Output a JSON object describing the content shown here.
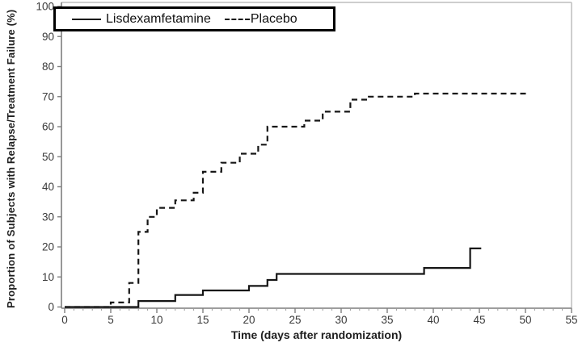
{
  "chart_data": {
    "type": "line",
    "subtype": "kaplan-meier-step",
    "title": "",
    "xlabel": "Time (days after randomization)",
    "ylabel": "Proportion of Subjects with Relapse/Treatment Failure (%)",
    "xlim": [
      0,
      55
    ],
    "ylim": [
      0,
      100
    ],
    "x_ticks": [
      0,
      5,
      10,
      15,
      20,
      25,
      30,
      35,
      40,
      45,
      50,
      55
    ],
    "x_minor_tick_interval": 1,
    "y_ticks": [
      0,
      10,
      20,
      30,
      40,
      50,
      60,
      70,
      80,
      90,
      100
    ],
    "grid": false,
    "legend_position": "top-left-box",
    "series": [
      {
        "name": "Lisdexamfetamine",
        "line_style": "solid",
        "color": "#161616",
        "points": [
          [
            0,
            0
          ],
          [
            8,
            2
          ],
          [
            12,
            4
          ],
          [
            15,
            5.5
          ],
          [
            20,
            7
          ],
          [
            22,
            9
          ],
          [
            23,
            11
          ],
          [
            39,
            13
          ],
          [
            44,
            19.5
          ]
        ],
        "x_end": 45.2
      },
      {
        "name": "Placebo",
        "line_style": "dashed",
        "color": "#161616",
        "points": [
          [
            0,
            0
          ],
          [
            5,
            1.5
          ],
          [
            7,
            8
          ],
          [
            8,
            25
          ],
          [
            9,
            30
          ],
          [
            10,
            33
          ],
          [
            12,
            35.5
          ],
          [
            14,
            38
          ],
          [
            15,
            45
          ],
          [
            17,
            48
          ],
          [
            19,
            51
          ],
          [
            21,
            54
          ],
          [
            22,
            60
          ],
          [
            26,
            62
          ],
          [
            28,
            65
          ],
          [
            31,
            69
          ],
          [
            33,
            70
          ],
          [
            38,
            71
          ]
        ],
        "x_end": 50.3
      }
    ]
  },
  "colors": {
    "series_line": "#161616",
    "axis": "#7f7f7f",
    "frame_light": "#bdbdbd",
    "minor_tick": "#9b9b9b",
    "tick_text": "#3a3a3a",
    "background": "#ffffff"
  }
}
